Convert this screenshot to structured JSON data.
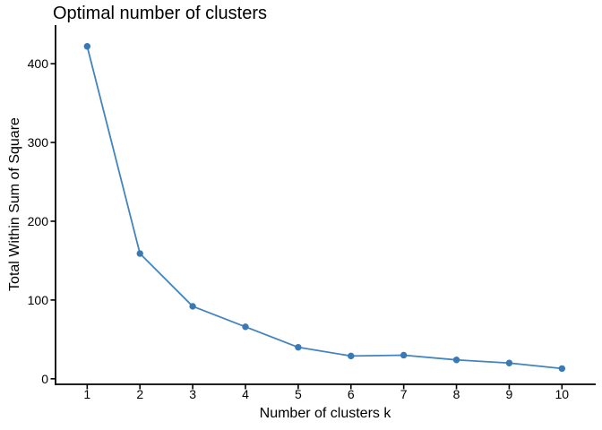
{
  "title": "Optimal number of clusters",
  "colors": {
    "background": "#FFFFFF",
    "axis": "#000000",
    "text": "#000000",
    "line": "#4384BE",
    "point": "#3B79B5"
  },
  "chart_data": {
    "type": "line",
    "title": "Optimal number of clusters",
    "xlabel": "Number of clusters k",
    "ylabel": "Total Within Sum of Square",
    "x": [
      1,
      2,
      3,
      4,
      5,
      6,
      7,
      8,
      9,
      10
    ],
    "y": [
      422,
      159,
      92,
      66,
      40,
      29,
      30,
      24,
      20,
      13
    ],
    "series": [
      {
        "name": "Total Within Sum of Square",
        "values": [
          422,
          159,
          92,
          66,
          40,
          29,
          30,
          24,
          20,
          13
        ]
      }
    ],
    "x_ticks": [
      1,
      2,
      3,
      4,
      5,
      6,
      7,
      8,
      9,
      10
    ],
    "y_ticks": [
      0,
      100,
      200,
      300,
      400
    ],
    "xlim": [
      0.4,
      10.64
    ],
    "ylim": [
      -7,
      449
    ],
    "grid": false,
    "legend_position": "none",
    "marker": "circle"
  }
}
